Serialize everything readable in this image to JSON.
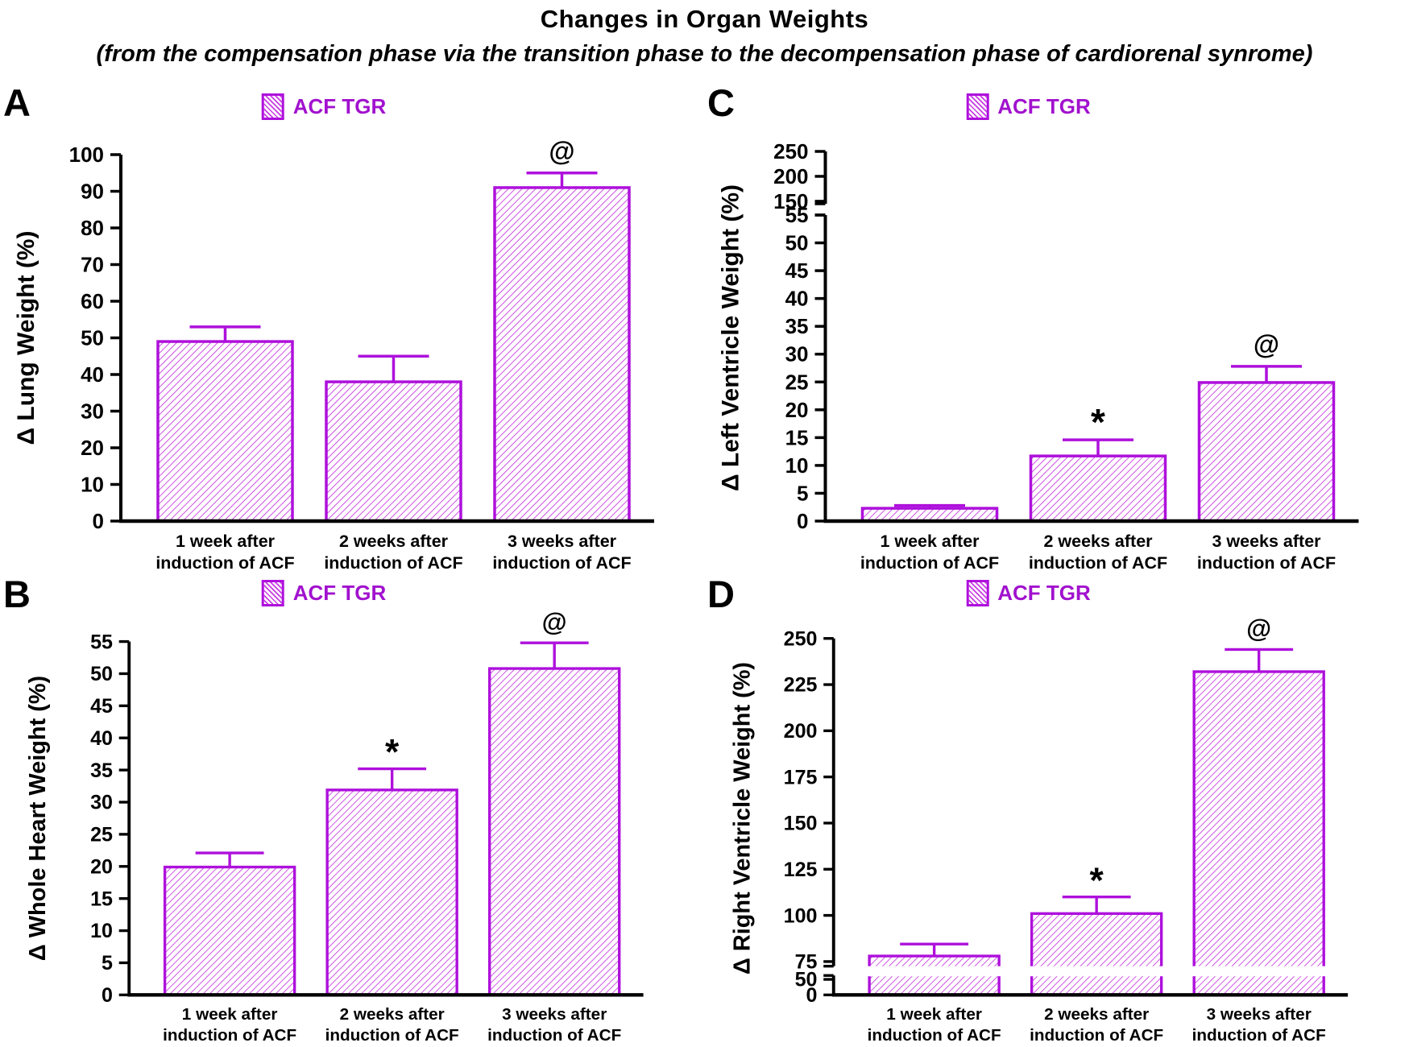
{
  "header": {
    "title": "Changes in Organ Weights",
    "subtitle": "(from the compensation phase via the transition phase to the decompensation phase of cardiorenal synrome)"
  },
  "legend": {
    "label": "ACF TGR"
  },
  "colors": {
    "bar_border": "#AE10DC",
    "hatch": "#C93BE3",
    "legend_text": "#A111CE",
    "axis": "#000000",
    "annotation": "#000000"
  },
  "categories": [
    [
      "1 week after",
      "induction of ACF"
    ],
    [
      "2 weeks after",
      "induction of ACF"
    ],
    [
      "3 weeks after",
      "induction of ACF"
    ]
  ],
  "chart_data": [
    {
      "panel": "A",
      "type": "bar",
      "ylabel": "Δ Lung Weight (%)",
      "legend": "ACF TGR",
      "series": [
        {
          "name": "ACF TGR",
          "values": [
            49,
            38,
            91
          ]
        }
      ],
      "values": [
        49,
        38,
        91
      ],
      "error_top": [
        53,
        45,
        95
      ],
      "annotations": [
        "",
        "",
        "@"
      ],
      "y_ticks": [
        [
          0,
          10,
          20,
          30,
          40,
          50,
          60,
          70,
          80,
          90,
          100
        ]
      ],
      "ylim": [
        0,
        100
      ],
      "grid": false,
      "legend_position": "top-center"
    },
    {
      "panel": "B",
      "type": "bar",
      "ylabel": "Δ Whole Heart Weight (%)",
      "legend": "ACF TGR",
      "series": [
        {
          "name": "ACF TGR",
          "values": [
            19.9,
            31.9,
            50.8
          ]
        }
      ],
      "values": [
        19.9,
        31.9,
        50.8
      ],
      "error_top": [
        22.1,
        35.2,
        54.8
      ],
      "annotations": [
        "",
        "*",
        "@"
      ],
      "y_ticks": [
        [
          0,
          5,
          10,
          15,
          20,
          25,
          30,
          35,
          40,
          45,
          50,
          55
        ]
      ],
      "ylim": [
        0,
        55
      ],
      "grid": false,
      "legend_position": "top-center"
    },
    {
      "panel": "C",
      "type": "bar",
      "ylabel": "Δ Left Ventricle Weight (%)",
      "legend": "ACF TGR",
      "series": [
        {
          "name": "ACF TGR",
          "values": [
            2.3,
            11.7,
            24.9
          ]
        }
      ],
      "values": [
        2.3,
        11.7,
        24.9
      ],
      "error_top": [
        2.8,
        14.6,
        27.8
      ],
      "annotations": [
        "",
        "*",
        "@"
      ],
      "y_ticks": [
        [
          0,
          5,
          10,
          15,
          20,
          25,
          30,
          35,
          40,
          45,
          50,
          55
        ],
        [
          150,
          200,
          250
        ]
      ],
      "ylim": [
        0,
        250
      ],
      "axis_break": [
        55,
        150
      ],
      "grid": false,
      "legend_position": "top-center"
    },
    {
      "panel": "D",
      "type": "bar",
      "ylabel": "Δ Right Ventricle Weight (%)",
      "legend": "ACF TGR",
      "series": [
        {
          "name": "ACF TGR",
          "values": [
            78,
            101,
            232
          ]
        }
      ],
      "values": [
        78,
        101,
        232
      ],
      "error_top": [
        84.5,
        110,
        244
      ],
      "annotations": [
        "",
        "*",
        "@"
      ],
      "y_ticks": [
        [
          0,
          50
        ],
        [
          75,
          100,
          125,
          150,
          175,
          200,
          225,
          250
        ]
      ],
      "ylim": [
        0,
        250
      ],
      "axis_break": [
        50,
        75
      ],
      "grid": false,
      "legend_position": "top-center"
    }
  ]
}
